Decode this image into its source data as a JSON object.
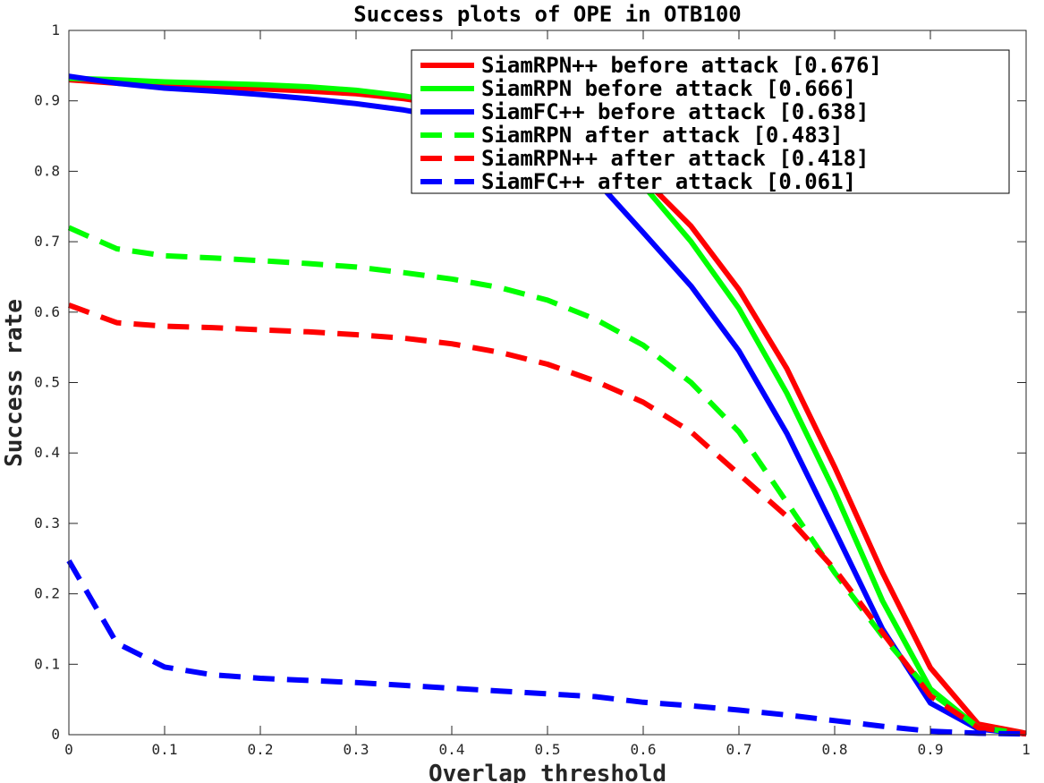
{
  "chart_data": {
    "type": "line",
    "title": "Success plots of OPE in OTB100",
    "xlabel": "Overlap threshold",
    "ylabel": "Success rate",
    "xlim": [
      0,
      1
    ],
    "ylim": [
      0,
      1
    ],
    "xticks": [
      "0",
      "0.1",
      "0.2",
      "0.3",
      "0.4",
      "0.5",
      "0.6",
      "0.7",
      "0.8",
      "0.9",
      "1"
    ],
    "yticks": [
      "0",
      "0.1",
      "0.2",
      "0.3",
      "0.4",
      "0.5",
      "0.6",
      "0.7",
      "0.8",
      "0.9",
      "1"
    ],
    "grid": false,
    "legend_position": "top-right",
    "x": [
      0,
      0.05,
      0.1,
      0.15,
      0.2,
      0.25,
      0.3,
      0.35,
      0.4,
      0.45,
      0.5,
      0.55,
      0.6,
      0.65,
      0.7,
      0.75,
      0.8,
      0.85,
      0.9,
      0.95,
      1
    ],
    "series": [
      {
        "name": "SiamRPN++ before attack [0.676]",
        "color": "#ff0000",
        "style": "solid",
        "values": [
          0.93,
          0.925,
          0.921,
          0.919,
          0.917,
          0.914,
          0.91,
          0.903,
          0.893,
          0.88,
          0.862,
          0.835,
          0.79,
          0.722,
          0.632,
          0.52,
          0.38,
          0.23,
          0.095,
          0.015,
          0.002
        ]
      },
      {
        "name": "SiamRPN before attack [0.666]",
        "color": "#00ff00",
        "style": "solid",
        "values": [
          0.932,
          0.93,
          0.927,
          0.925,
          0.923,
          0.92,
          0.915,
          0.907,
          0.896,
          0.88,
          0.86,
          0.825,
          0.78,
          0.7,
          0.605,
          0.485,
          0.345,
          0.19,
          0.065,
          0.01,
          0.001
        ]
      },
      {
        "name": "SiamFC++ before attack [0.638]",
        "color": "#0000ff",
        "style": "solid",
        "values": [
          0.935,
          0.925,
          0.918,
          0.914,
          0.909,
          0.903,
          0.896,
          0.887,
          0.875,
          0.858,
          0.832,
          0.788,
          0.713,
          0.637,
          0.545,
          0.428,
          0.29,
          0.15,
          0.045,
          0.008,
          0.001
        ]
      },
      {
        "name": "SiamRPN after attack [0.483]",
        "color": "#00ff00",
        "style": "dashed",
        "values": [
          0.72,
          0.69,
          0.68,
          0.677,
          0.673,
          0.669,
          0.664,
          0.656,
          0.647,
          0.635,
          0.617,
          0.59,
          0.553,
          0.5,
          0.43,
          0.33,
          0.23,
          0.14,
          0.06,
          0.01,
          0.001
        ]
      },
      {
        "name": "SiamRPN++ after attack [0.418]",
        "color": "#ff0000",
        "style": "dashed",
        "values": [
          0.61,
          0.585,
          0.58,
          0.578,
          0.575,
          0.572,
          0.568,
          0.563,
          0.555,
          0.543,
          0.526,
          0.502,
          0.472,
          0.43,
          0.37,
          0.31,
          0.235,
          0.145,
          0.055,
          0.01,
          0.001
        ]
      },
      {
        "name": "SiamFC++ after attack [0.061]",
        "color": "#0000ff",
        "style": "dashed",
        "values": [
          0.247,
          0.13,
          0.096,
          0.085,
          0.08,
          0.077,
          0.074,
          0.07,
          0.066,
          0.062,
          0.058,
          0.054,
          0.046,
          0.041,
          0.035,
          0.028,
          0.02,
          0.012,
          0.005,
          0.002,
          0.001
        ]
      }
    ]
  }
}
